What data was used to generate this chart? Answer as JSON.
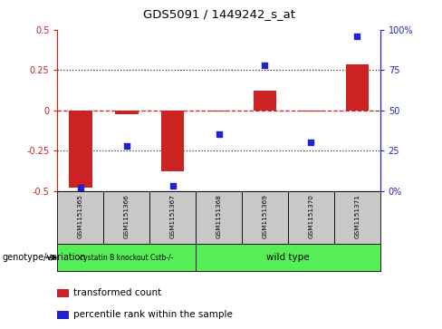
{
  "title": "GDS5091 / 1449242_s_at",
  "samples": [
    "GSM1151365",
    "GSM1151366",
    "GSM1151367",
    "GSM1151368",
    "GSM1151369",
    "GSM1151370",
    "GSM1151371"
  ],
  "transformed_counts": [
    -0.48,
    -0.025,
    -0.38,
    -0.01,
    0.12,
    -0.01,
    0.285
  ],
  "percentile_ranks": [
    2,
    28,
    3,
    35,
    78,
    30,
    96
  ],
  "ylim_left": [
    -0.5,
    0.5
  ],
  "ylim_right": [
    0,
    100
  ],
  "bar_color": "#cc2222",
  "dot_color": "#2222cc",
  "group1_label": "cystatin B knockout Cstb-/-",
  "group2_label": "wild type",
  "group_color": "#55ee55",
  "group_label_prefix": "genotype/variation",
  "legend_items": [
    {
      "color": "#cc2222",
      "label": "transformed count"
    },
    {
      "color": "#2222cc",
      "label": "percentile rank within the sample"
    }
  ],
  "zero_line_color": "#cc2222",
  "dotted_line_color": "#333333",
  "tick_label_color_left": "#cc2222",
  "tick_label_color_right": "#2222cc",
  "bar_width": 0.5,
  "sample_bg_color": "#c8c8c8",
  "group1_span": [
    0,
    2
  ],
  "group2_span": [
    3,
    6
  ]
}
